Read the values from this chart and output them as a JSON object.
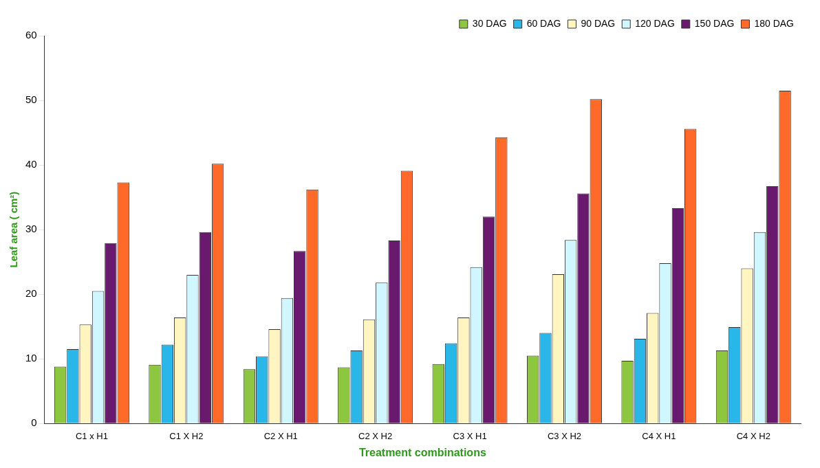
{
  "chart_data": {
    "type": "bar",
    "xlabel": "Treatment combinations",
    "ylabel": "Leaf area ( cm²)",
    "categories": [
      "C1 x H1",
      "C1 X H2",
      "C2 X H1",
      "C2 X H2",
      "C3 X H1",
      "C3 X H2",
      "C4 X H1",
      "C4 X H2"
    ],
    "series": [
      {
        "name": "30 DAG",
        "color": "#8dc63f",
        "values": [
          8.8,
          9.1,
          8.4,
          8.7,
          9.2,
          10.5,
          9.7,
          11.3
        ]
      },
      {
        "name": "60 DAG",
        "color": "#29b6e8",
        "values": [
          11.5,
          12.2,
          10.4,
          11.3,
          12.4,
          14.0,
          13.1,
          14.9
        ]
      },
      {
        "name": "90 DAG",
        "color": "#fff5c0",
        "values": [
          15.3,
          16.4,
          14.6,
          16.1,
          16.4,
          23.1,
          17.1,
          24.0
        ]
      },
      {
        "name": "120 DAG",
        "color": "#d0f6ff",
        "values": [
          20.5,
          23.0,
          19.4,
          21.8,
          24.2,
          28.4,
          24.8,
          29.6
        ]
      },
      {
        "name": "150 DAG",
        "color": "#6a1a6e",
        "values": [
          27.9,
          29.6,
          26.7,
          28.3,
          32.0,
          35.6,
          33.3,
          36.7
        ]
      },
      {
        "name": "180 DAG",
        "color": "#ff6a2a",
        "values": [
          37.3,
          40.2,
          36.2,
          39.1,
          44.3,
          50.2,
          45.6,
          51.5
        ]
      }
    ],
    "ylim": [
      0,
      60
    ],
    "yticks": [
      0,
      10,
      20,
      30,
      40,
      50,
      60
    ],
    "grid": false,
    "legend": "top right"
  }
}
